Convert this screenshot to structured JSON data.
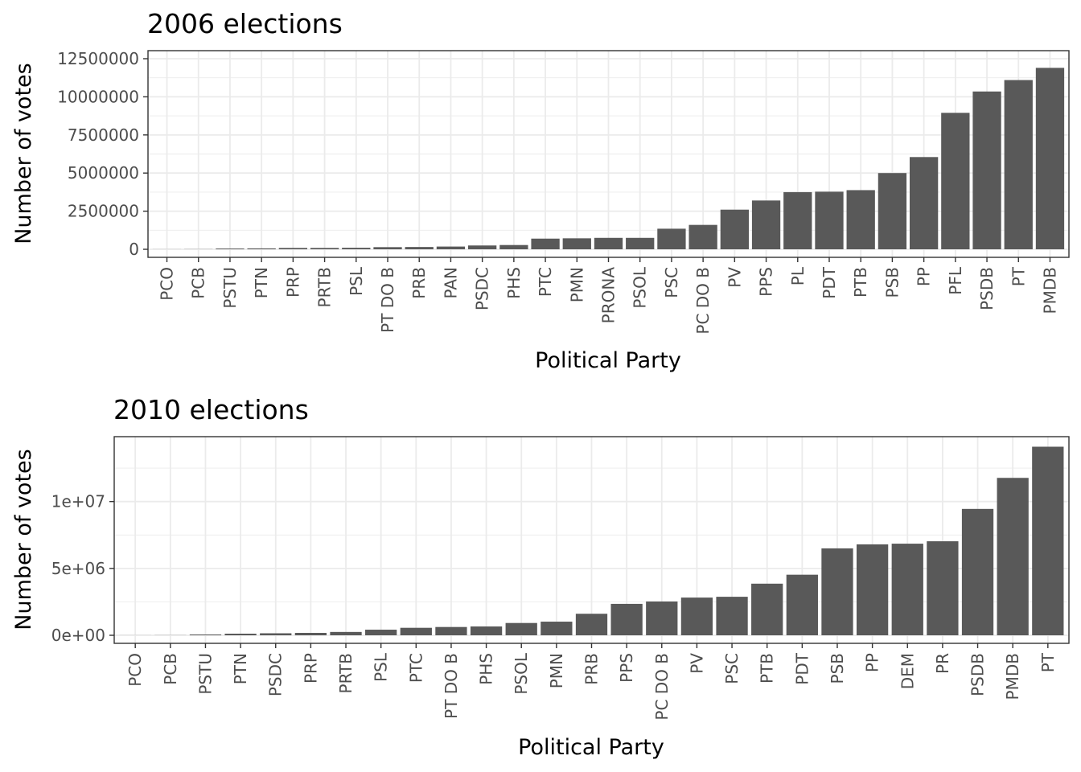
{
  "chart_data": [
    {
      "type": "bar",
      "title": "2006 elections",
      "xlabel": "Political Party",
      "ylabel": "Number of votes",
      "ylim": [
        0,
        12500000
      ],
      "yticks": [
        {
          "value": 0,
          "label": "0"
        },
        {
          "value": 2500000,
          "label": "2500000"
        },
        {
          "value": 5000000,
          "label": "5000000"
        },
        {
          "value": 7500000,
          "label": "7500000"
        },
        {
          "value": 10000000,
          "label": "10000000"
        },
        {
          "value": 12500000,
          "label": "12500000"
        }
      ],
      "grid": true,
      "categories": [
        "PCO",
        "PCB",
        "PSTU",
        "PTN",
        "PRP",
        "PRTB",
        "PSL",
        "PT DO B",
        "PRB",
        "PAN",
        "PSDC",
        "PHS",
        "PTC",
        "PMN",
        "PRONA",
        "PSOL",
        "PSC",
        "PC DO B",
        "PV",
        "PPS",
        "PL",
        "PDT",
        "PTB",
        "PSB",
        "PP",
        "PFL",
        "PSDB",
        "PT",
        "PMDB"
      ],
      "values": [
        5000,
        10000,
        50000,
        60000,
        90000,
        90000,
        100000,
        140000,
        150000,
        180000,
        250000,
        280000,
        700000,
        720000,
        750000,
        750000,
        1350000,
        1600000,
        2600000,
        3200000,
        3750000,
        3780000,
        3880000,
        5000000,
        6050000,
        8950000,
        10350000,
        11100000,
        11900000
      ]
    },
    {
      "type": "bar",
      "title": "2010 elections",
      "xlabel": "Political Party",
      "ylabel": "Number of votes",
      "ylim": [
        0,
        14250000
      ],
      "yticks": [
        {
          "value": 0,
          "label": "0e+00"
        },
        {
          "value": 5000000,
          "label": "5e+06"
        },
        {
          "value": 10000000,
          "label": "1e+07"
        }
      ],
      "grid": true,
      "categories": [
        "PCO",
        "PCB",
        "PSTU",
        "PTN",
        "PSDC",
        "PRP",
        "PRTB",
        "PSL",
        "PTC",
        "PT DO B",
        "PHS",
        "PSOL",
        "PMN",
        "PRB",
        "PPS",
        "PC DO B",
        "PV",
        "PSC",
        "PTB",
        "PDT",
        "PSB",
        "PP",
        "DEM",
        "PR",
        "PSDB",
        "PMDB",
        "PT"
      ],
      "values": [
        5000,
        10000,
        60000,
        120000,
        150000,
        180000,
        250000,
        420000,
        560000,
        620000,
        660000,
        920000,
        1020000,
        1610000,
        2350000,
        2530000,
        2820000,
        2880000,
        3860000,
        4530000,
        6500000,
        6800000,
        6850000,
        7030000,
        9450000,
        11770000,
        14100000
      ]
    }
  ]
}
